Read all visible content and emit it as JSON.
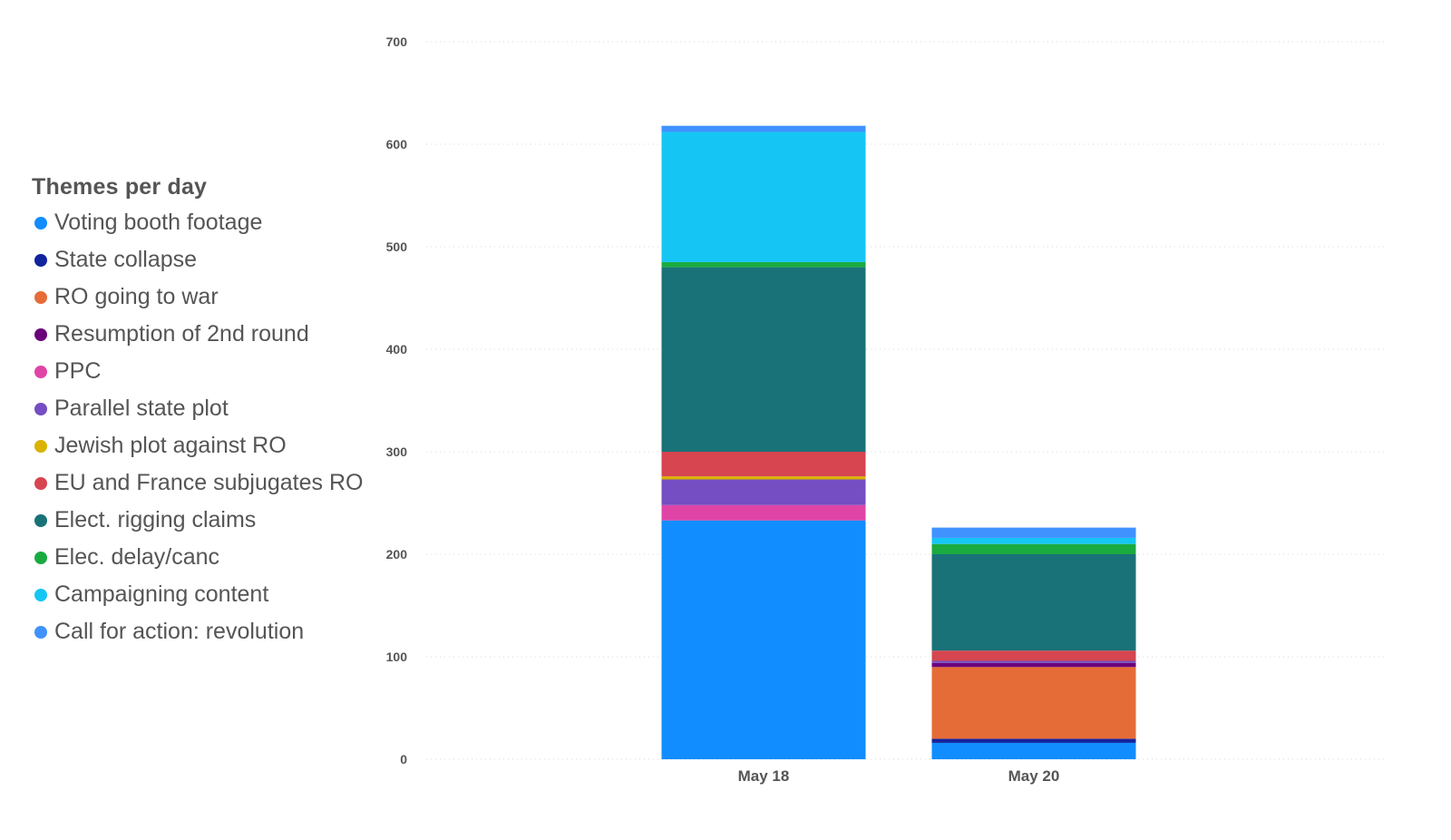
{
  "chart_data": {
    "type": "bar",
    "stacked": true,
    "title": "",
    "xlabel": "",
    "ylabel": "",
    "ylim": [
      0,
      700
    ],
    "yticks": [
      0,
      100,
      200,
      300,
      400,
      500,
      600,
      700
    ],
    "grid": true,
    "legend": {
      "title": "Themes per day",
      "placement": "left"
    },
    "categories": [
      "May 18",
      "May 20"
    ],
    "series": [
      {
        "name": "Voting booth footage",
        "color": "#118DFF",
        "values": [
          233,
          16
        ]
      },
      {
        "name": "State collapse",
        "color": "#12239E",
        "values": [
          0,
          4
        ]
      },
      {
        "name": "RO going to war",
        "color": "#E66C37",
        "values": [
          0,
          70
        ]
      },
      {
        "name": "Resumption of 2nd round",
        "color": "#6B007B",
        "values": [
          0,
          4
        ]
      },
      {
        "name": "PPC",
        "color": "#E044A7",
        "values": [
          15,
          0
        ]
      },
      {
        "name": "Parallel state plot",
        "color": "#744EC2",
        "values": [
          25,
          2
        ]
      },
      {
        "name": "Jewish plot against RO",
        "color": "#D9B300",
        "values": [
          3,
          0
        ]
      },
      {
        "name": "EU and France subjugates RO",
        "color": "#D64550",
        "values": [
          24,
          10
        ]
      },
      {
        "name": "Elect. rigging claims",
        "color": "#197278",
        "values": [
          180,
          94
        ]
      },
      {
        "name": "Elec. delay/canc",
        "color": "#1AAB40",
        "values": [
          5,
          10
        ]
      },
      {
        "name": "Campaigning content",
        "color": "#15C6F4",
        "values": [
          127,
          6
        ]
      },
      {
        "name": "Call for action: revolution",
        "color": "#4092FF",
        "values": [
          6,
          10
        ]
      }
    ]
  }
}
